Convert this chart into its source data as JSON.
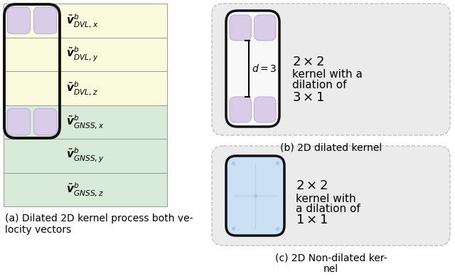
{
  "fig_width": 6.4,
  "fig_height": 3.92,
  "dpi": 100,
  "bg_color": "#ffffff",
  "dvl_bg": "#fafadc",
  "gnss_bg": "#d8ead8",
  "panel_bg": "#e8e8e8",
  "kernel_border": "#111111",
  "purple_cell": "#d8cce8",
  "purple_cell_edge": "#c0b0d8",
  "blue_cell": "#cce0f5",
  "panel_edge": "#cccccc",
  "row_labels": [
    "$\\tilde{\\boldsymbol{v}}^b_{DVL,x}$",
    "$\\tilde{\\boldsymbol{v}}^b_{DVL,y}$",
    "$\\tilde{\\boldsymbol{v}}^b_{DVL,z}$",
    "$\\tilde{\\boldsymbol{v}}^b_{GNSS,x}$",
    "$\\tilde{\\boldsymbol{v}}^b_{GNSS,y}$",
    "$\\tilde{\\boldsymbol{v}}^b_{GNSS,z}$"
  ],
  "caption_a": "(a) Dilated 2D kernel process both ve-\nlocity vectors",
  "caption_b": "(b) 2D dilated kernel",
  "caption_c": "(c) 2D Non-dilated ker-\nnel"
}
